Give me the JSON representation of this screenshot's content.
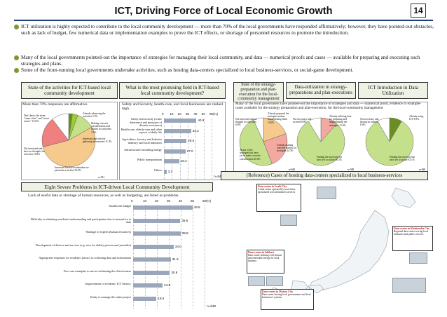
{
  "header": {
    "title": "ICT, Driving Force of Local Economic Growth",
    "page_number": "14"
  },
  "bullets": [
    "ICT utilization is highly expected to contribute to the local community development — more than 70% of the local governments have responded affirmatively; however, they have pointed-out obstacles, such as lack of budget, few numerical data or implementation examples to prove the ICT effects, or shortage of personnel resources to promote the introduction.",
    "Many of the local governments pointed-out the importance of strategies for managing their local community, and data — numerical proofs and cases — available for preparing and executing such strategies and plans.",
    "Some of the front-running local governments undertake activities, such as hosting data-centers specialized to local business-services, or social-game development."
  ],
  "section_headers": {
    "activities": "State of the activities for ICT-based local community development",
    "promising": "What is the most promising field in ICT-based local community development?",
    "strategy": "State of the strategy-preparation and plan-execution for the local-community management",
    "data_util": "Data-utilization in strategy-preparations and plan-executions",
    "ict_intro": "ICT Introduction in Data Utilization"
  },
  "pie1": {
    "caption": "More than 70% responses are affirmative.",
    "n_label": "n=841",
    "labels": [
      "Don't know the terms \"smart cities\" and \"smart towns.\" 10.6%",
      "Already advancing the activities 2.3%",
      "Making concrete considerations and studies for activities 3.4%",
      "Interested and actively gathering information 11.3%",
      "Not interested and have no thoughts for activities 18.8%",
      "Interested but have undertaken no particular activities 54.8%"
    ],
    "slices": [
      {
        "value": 2.3,
        "color": "#6b8e23"
      },
      {
        "value": 3.4,
        "color": "#9acd32"
      },
      {
        "value": 11.3,
        "color": "#c5e08a"
      },
      {
        "value": 54.8,
        "color": "#f6c98c"
      },
      {
        "value": 18.8,
        "color": "#f08080"
      },
      {
        "value": 10.6,
        "color": "#ffffff"
      }
    ]
  },
  "promising": {
    "caption": "Safety and Security, health-care, and local businesses are ranked high.",
    "axis_unit": "(%)",
    "n_label": "n=848",
    "ticks": [
      "0",
      "10",
      "20",
      "30",
      "40",
      "50",
      "60"
    ],
    "items": [
      {
        "label": "Safety and security (crime deterrence and measures of disaster-resistance)",
        "value": 40.9
      },
      {
        "label": "Health-care, elderly-care and other aspects of daily life",
        "value": 34.2
      },
      {
        "label": "Agriculture, forestry and fisheries industry, and local industries",
        "value": 28.5
      },
      {
        "label": "Infrastructures including energy",
        "value": 27.0
      },
      {
        "label": "Public transportation",
        "value": 19.2
      },
      {
        "label": "Others",
        "value": 3.2
      }
    ]
  },
  "strategy_caption": "Many of the local government have pointed-out the importance of strategies and data — numerical proof, evidence or example-cases available for the strategy preparation and plan-execution, for the local-community management",
  "pie2": {
    "n_label": "n=848",
    "labels": [
      "Not interested and no thought for activities 6.8%",
      "Already prepared the strategies and are implementing them 19.6%",
      "Already making concrete studies for strategies 24.5%",
      "Aware of the strategies but have yet to make concrete consideration 49.0%"
    ],
    "slices": [
      {
        "value": 19.6,
        "color": "#f6c98c"
      },
      {
        "value": 24.5,
        "color": "#f3a9a0"
      },
      {
        "value": 49.0,
        "color": "#c5e08a"
      },
      {
        "value": 6.8,
        "color": "#ffffff"
      }
    ],
    "footnote": "* Prepared the strategies but yet to make concrete plan-execution for the local community management."
  },
  "pie3": {
    "n_label": "n=588",
    "labels": [
      "Not necessary and no need 8.8%",
      "Already utilizing data for preparing and implementing the strategies 11.6%",
      "Finding the necessity but have yet to utilize 80.3%"
    ],
    "slices": [
      {
        "value": 11.6,
        "color": "#f3a9a0"
      },
      {
        "value": 80.3,
        "color": "#c5e08a"
      },
      {
        "value": 8.8,
        "color": "#ffffff"
      }
    ]
  },
  "pie4": {
    "n_label": "n=848",
    "labels": [
      "Not necessary and having no interest 8.4%",
      "Already using ICT 8.5%",
      "Finding the necessity but have yet to utilize 83.1%"
    ],
    "slices": [
      {
        "value": 8.5,
        "color": "#6b8e23"
      },
      {
        "value": 83.1,
        "color": "#c5e08a"
      },
      {
        "value": 8.4,
        "color": "#ffffff"
      }
    ],
    "footnote": "* Targeted were the local governments, that were implementing and reviewing strategies for local community management and also implementing and utilizing them already."
  },
  "problems": {
    "header": "Eight Severe Problems in ICT-driven Local Community Development",
    "caption": "Lack of useful data or shortage of human resources, as well as budgeting, are listed as problems.",
    "axis_unit": "(%)",
    "n_label": "n=849",
    "ticks": [
      "0",
      "10",
      "20",
      "30",
      "40",
      "50",
      "60"
    ],
    "items": [
      {
        "label": "Insufficient budget",
        "value": 49.8
      },
      {
        "label": "Difficulty in obtaining residents' understanding and participation due to insensitive to data",
        "value": 39.6
      },
      {
        "label": "Shortage of experts (human resources)",
        "value": 39.8
      },
      {
        "label": "Development of devices and services (e.g. ease for elderly persons and juveniles)",
        "value": 34.0
      },
      {
        "label": "Appropriate responses for residents' privacy in collecting data and information",
        "value": 31.6
      },
      {
        "label": "Few case examples to use in confirming the effectiveness",
        "value": 30.8
      },
      {
        "label": "Improvement of residents' ICT literacy",
        "value": 24.8
      },
      {
        "label": "Entity to manage the entire project",
        "value": 19.6
      }
    ]
  },
  "reference": {
    "header": "(Reference) Cases of hosting data-centers specialized to local business-services",
    "cases": [
      {
        "title": "Data-center in Iwaki City",
        "text": "A data-center operated by local firms specialized to local business services"
      },
      {
        "title": "Data-center in Ishikari",
        "text": "Data-center utilizing cold climate and renewable energy for local business"
      },
      {
        "title": "Data-center in Matsue City",
        "text": "Data-center hosting local governments and local businesses' systems"
      },
      {
        "title": "Data-center in Kitakyushu City",
        "text": "Regional data-center serving local industries and public services"
      }
    ]
  },
  "colors": {
    "accent": "#7b9a2f",
    "header_bg": "#eef2e4",
    "bar": "#9aa6b9",
    "rule": "#1f3f7a"
  }
}
